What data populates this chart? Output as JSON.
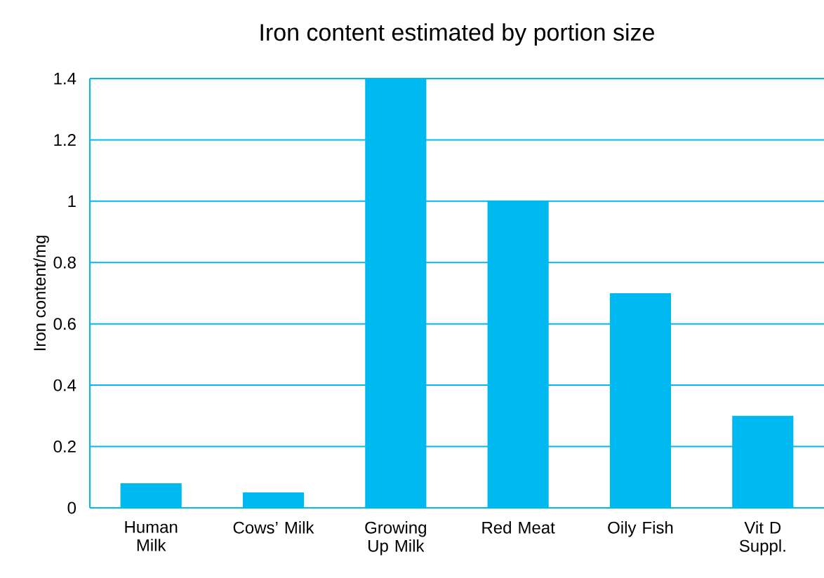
{
  "chart_data": {
    "type": "bar",
    "title": "Iron content estimated by portion size",
    "ylabel": "Iron content/mg",
    "categories": [
      "Human Milk",
      "Cows’ Milk",
      "Growing Up Milk",
      "Red Meat",
      "Oily Fish",
      "Vit D Suppl."
    ],
    "values": [
      0.08,
      0.05,
      1.4,
      1.0,
      0.7,
      0.3
    ],
    "color": "#00b9f0",
    "ylim": [
      0,
      1.4
    ],
    "yticks": [
      0,
      0.2,
      0.4,
      0.6,
      0.8,
      1,
      1.2,
      1.4
    ],
    "grid": "y"
  }
}
